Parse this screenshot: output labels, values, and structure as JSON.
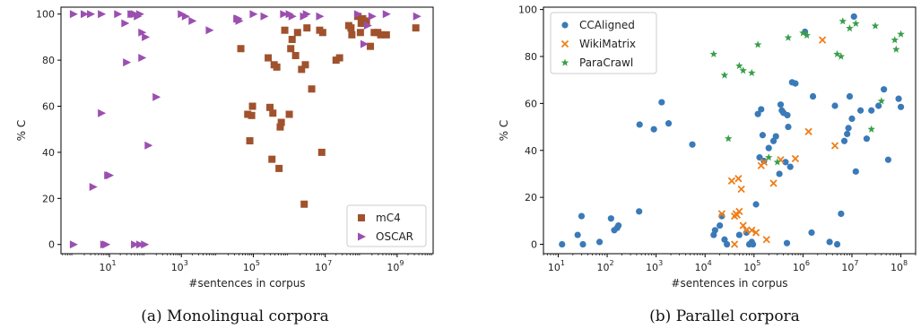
{
  "chart_data": [
    {
      "type": "scatter",
      "caption": "(a) Monolingual corpora",
      "xlabel": "#sentences in corpus",
      "ylabel": "% C",
      "xscale": "log",
      "xlim": [
        0.45,
        10000000000
      ],
      "ylim": [
        -4,
        103
      ],
      "xticks": [
        {
          "value": 10,
          "label": "10",
          "exp": "1"
        },
        {
          "value": 1000,
          "label": "10",
          "exp": "3"
        },
        {
          "value": 100000,
          "label": "10",
          "exp": "5"
        },
        {
          "value": 10000000,
          "label": "10",
          "exp": "7"
        },
        {
          "value": 1000000000,
          "label": "10",
          "exp": "9"
        }
      ],
      "yticks": [
        0,
        20,
        40,
        60,
        80,
        100
      ],
      "legend_position": "lower-right",
      "series": [
        {
          "name": "mC4",
          "color": "#a0522d",
          "marker": "square",
          "points": [
            [
              45000,
              85
            ],
            [
              70000,
              56.5
            ],
            [
              80000,
              45
            ],
            [
              90000,
              56
            ],
            [
              95000,
              60
            ],
            [
              260000,
              81
            ],
            [
              290000,
              59.5
            ],
            [
              330000,
              37
            ],
            [
              350000,
              57
            ],
            [
              380000,
              78
            ],
            [
              450000,
              77
            ],
            [
              520000,
              33
            ],
            [
              560000,
              51
            ],
            [
              600000,
              53
            ],
            [
              750000,
              93
            ],
            [
              1000000,
              56.5
            ],
            [
              1100000,
              85
            ],
            [
              1200000,
              89
            ],
            [
              1500000,
              82
            ],
            [
              1700000,
              92
            ],
            [
              2200000,
              76
            ],
            [
              2600000,
              17.5
            ],
            [
              2800000,
              78
            ],
            [
              3100000,
              94
            ],
            [
              4200000,
              67.5
            ],
            [
              7000000,
              93
            ],
            [
              8000000,
              40
            ],
            [
              8500000,
              92
            ],
            [
              20000000,
              80
            ],
            [
              25000000,
              81
            ],
            [
              45000000,
              95
            ],
            [
              52000000,
              94
            ],
            [
              55000000,
              91
            ],
            [
              80000000,
              99
            ],
            [
              95000000,
              92
            ],
            [
              100000000,
              96
            ],
            [
              110000000,
              98
            ],
            [
              130000000,
              96
            ],
            [
              140000000,
              97
            ],
            [
              180000000,
              86
            ],
            [
              230000000,
              92
            ],
            [
              290000000,
              92
            ],
            [
              350000000,
              91
            ],
            [
              500000000,
              91
            ],
            [
              3300000000,
              94
            ]
          ]
        },
        {
          "name": "OSCAR",
          "color": "#9b4fb0",
          "marker": "triangle-right",
          "points": [
            [
              1,
              100
            ],
            [
              1,
              0
            ],
            [
              2,
              100
            ],
            [
              3,
              100
            ],
            [
              3.5,
              25
            ],
            [
              6,
              100
            ],
            [
              6,
              57
            ],
            [
              7,
              0
            ],
            [
              8,
              0
            ],
            [
              9,
              30
            ],
            [
              10,
              30
            ],
            [
              17,
              100
            ],
            [
              27,
              96
            ],
            [
              30,
              79
            ],
            [
              40,
              100
            ],
            [
              45,
              100
            ],
            [
              50,
              100
            ],
            [
              50,
              0
            ],
            [
              60,
              99
            ],
            [
              70,
              0
            ],
            [
              70,
              100
            ],
            [
              80,
              81
            ],
            [
              80,
              92
            ],
            [
              95,
              0
            ],
            [
              100,
              90
            ],
            [
              120,
              43
            ],
            [
              200,
              64
            ],
            [
              1000,
              100
            ],
            [
              1300,
              99
            ],
            [
              2000,
              97
            ],
            [
              6000,
              93
            ],
            [
              35000,
              98
            ],
            [
              38000,
              98
            ],
            [
              40000,
              97
            ],
            [
              100000,
              100
            ],
            [
              200000,
              99
            ],
            [
              700000,
              100
            ],
            [
              1000000,
              100
            ],
            [
              1200000,
              99
            ],
            [
              2500000,
              99
            ],
            [
              3000000,
              100
            ],
            [
              7000000,
              99
            ],
            [
              80000000,
              100
            ],
            [
              120000000,
              87
            ],
            [
              150000000,
              95
            ],
            [
              200000000,
              99
            ],
            [
              500000000,
              100
            ],
            [
              3500000000,
              99
            ]
          ]
        }
      ]
    },
    {
      "type": "scatter",
      "caption": "(b) Parallel corpora",
      "xlabel": "#sentences in corpus",
      "ylabel": "% C",
      "xscale": "log",
      "xlim": [
        5,
        200000000
      ],
      "ylim": [
        -4,
        101
      ],
      "xticks": [
        {
          "value": 10,
          "label": "10",
          "exp": "1"
        },
        {
          "value": 100,
          "label": "10",
          "exp": "2"
        },
        {
          "value": 1000,
          "label": "10",
          "exp": "3"
        },
        {
          "value": 10000,
          "label": "10",
          "exp": "4"
        },
        {
          "value": 100000,
          "label": "10",
          "exp": "5"
        },
        {
          "value": 1000000,
          "label": "10",
          "exp": "6"
        },
        {
          "value": 10000000,
          "label": "10",
          "exp": "7"
        },
        {
          "value": 100000000,
          "label": "10",
          "exp": "8"
        }
      ],
      "yticks": [
        0,
        20,
        40,
        60,
        80,
        100
      ],
      "legend_position": "upper-left",
      "series": [
        {
          "name": "CCAligned",
          "color": "#3a7ab8",
          "marker": "circle",
          "points": [
            [
              12,
              0
            ],
            [
              25,
              4
            ],
            [
              30,
              12
            ],
            [
              32,
              0
            ],
            [
              70,
              1
            ],
            [
              120,
              11
            ],
            [
              140,
              6
            ],
            [
              160,
              7
            ],
            [
              170,
              8
            ],
            [
              450,
              14
            ],
            [
              460,
              51
            ],
            [
              900,
              49
            ],
            [
              1300,
              60.5
            ],
            [
              1800,
              51.5
            ],
            [
              5500,
              42.5
            ],
            [
              15000,
              4
            ],
            [
              16000,
              6
            ],
            [
              20000,
              8
            ],
            [
              22000,
              12
            ],
            [
              25000,
              2
            ],
            [
              28000,
              0
            ],
            [
              50000,
              4
            ],
            [
              70000,
              5
            ],
            [
              80000,
              0
            ],
            [
              90000,
              1
            ],
            [
              95000,
              0
            ],
            [
              110000,
              17
            ],
            [
              120000,
              55.5
            ],
            [
              130000,
              37
            ],
            [
              140000,
              57.5
            ],
            [
              150000,
              46.5
            ],
            [
              160000,
              35.5
            ],
            [
              200000,
              41
            ],
            [
              250000,
              44
            ],
            [
              280000,
              46
            ],
            [
              330000,
              30
            ],
            [
              350000,
              59.5
            ],
            [
              370000,
              57
            ],
            [
              400000,
              56
            ],
            [
              440000,
              35
            ],
            [
              470000,
              0.5
            ],
            [
              480000,
              55
            ],
            [
              500000,
              50
            ],
            [
              550000,
              33
            ],
            [
              600000,
              69
            ],
            [
              700000,
              68.5
            ],
            [
              1100000,
              90.5
            ],
            [
              1500000,
              5
            ],
            [
              1600000,
              63
            ],
            [
              3500000,
              1
            ],
            [
              4500000,
              59
            ],
            [
              5000000,
              0
            ],
            [
              6000000,
              13
            ],
            [
              7000000,
              44
            ],
            [
              8000000,
              47
            ],
            [
              8500000,
              49.5
            ],
            [
              9000000,
              63
            ],
            [
              10000000,
              53.5
            ],
            [
              11000000,
              97
            ],
            [
              12000000,
              31
            ],
            [
              15000000,
              57
            ],
            [
              20000000,
              45
            ],
            [
              25000000,
              57
            ],
            [
              35000000,
              59
            ],
            [
              45000000,
              66
            ],
            [
              55000000,
              36
            ],
            [
              90000000,
              62
            ],
            [
              100000000,
              58.5
            ]
          ]
        },
        {
          "name": "WikiMatrix",
          "color": "#f07f1a",
          "marker": "x",
          "points": [
            [
              22000,
              13
            ],
            [
              35000,
              27
            ],
            [
              40000,
              0
            ],
            [
              40000,
              12
            ],
            [
              43000,
              13
            ],
            [
              45000,
              12.5
            ],
            [
              48000,
              28
            ],
            [
              50000,
              14
            ],
            [
              55000,
              23.5
            ],
            [
              60000,
              8
            ],
            [
              70000,
              6
            ],
            [
              90000,
              6
            ],
            [
              110000,
              5
            ],
            [
              140000,
              33.5
            ],
            [
              160000,
              35
            ],
            [
              180000,
              2
            ],
            [
              250000,
              26
            ],
            [
              350000,
              36
            ],
            [
              700000,
              36.5
            ],
            [
              1300000,
              48
            ],
            [
              2500000,
              87
            ],
            [
              4500000,
              42
            ]
          ]
        },
        {
          "name": "ParaCrawl",
          "color": "#3a9e4a",
          "marker": "star",
          "points": [
            [
              15000,
              81
            ],
            [
              25000,
              72
            ],
            [
              30000,
              45
            ],
            [
              50000,
              76
            ],
            [
              60000,
              74
            ],
            [
              90000,
              73
            ],
            [
              120000,
              85
            ],
            [
              200000,
              37
            ],
            [
              300000,
              35
            ],
            [
              500000,
              88
            ],
            [
              1000000,
              90
            ],
            [
              1200000,
              89
            ],
            [
              5000000,
              81
            ],
            [
              6000000,
              80
            ],
            [
              6500000,
              95
            ],
            [
              9000000,
              92
            ],
            [
              12000000,
              94
            ],
            [
              25000000,
              49
            ],
            [
              30000000,
              93
            ],
            [
              40000000,
              61
            ],
            [
              75000000,
              87
            ],
            [
              80000000,
              83
            ],
            [
              100000000,
              89.5
            ]
          ]
        }
      ]
    }
  ]
}
